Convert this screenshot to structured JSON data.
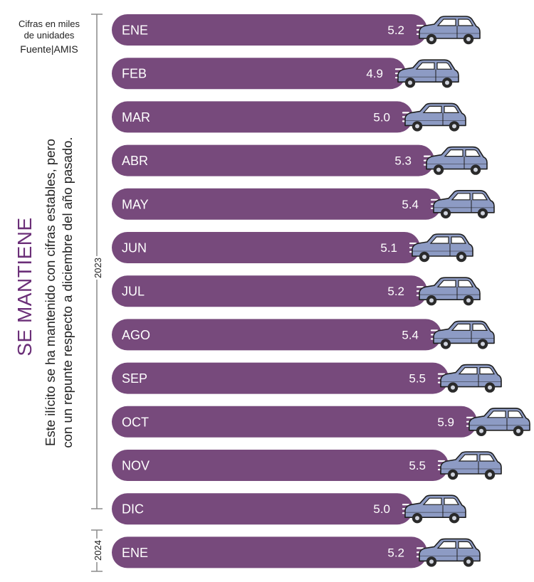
{
  "source": {
    "units_line1": "Cifras en miles",
    "units_line2": "de unidades",
    "source_label": "Fuente|AMIS"
  },
  "headline": "SE MANTIENE",
  "subtitle": {
    "line1": "Este ilícito se ha mantenido con cifras estables, pero",
    "line2": "con un repunte respecto a diciembre del año pasado."
  },
  "year_groups": {
    "first": "2023",
    "second": "2024"
  },
  "colors": {
    "bar": "#774a7c",
    "car_body": "#8d9bc4",
    "car_window": "#ffffff",
    "tire": "#2a2a2a",
    "accent_text": "#6b2f78"
  },
  "icons": {
    "car": "car-icon",
    "speed_lines": "speed-lines-icon"
  },
  "chart_data": {
    "type": "bar",
    "orientation": "horizontal",
    "title": "SE MANTIENE",
    "unit": "miles de unidades",
    "categories": [
      "ENE",
      "FEB",
      "MAR",
      "ABR",
      "MAY",
      "JUN",
      "JUL",
      "AGO",
      "SEP",
      "OCT",
      "NOV",
      "DIC",
      "ENE"
    ],
    "years": [
      "2023",
      "2023",
      "2023",
      "2023",
      "2023",
      "2023",
      "2023",
      "2023",
      "2023",
      "2023",
      "2023",
      "2023",
      "2024"
    ],
    "values": [
      5.2,
      4.9,
      5.0,
      5.3,
      5.4,
      5.1,
      5.2,
      5.4,
      5.5,
      5.9,
      5.5,
      5.0,
      5.2
    ],
    "value_labels": [
      "5.2",
      "4.9",
      "5.0",
      "5.3",
      "5.4",
      "5.1",
      "5.2",
      "5.4",
      "5.5",
      "5.9",
      "5.5",
      "5.0",
      "5.2"
    ],
    "xlim": [
      0,
      6
    ]
  }
}
